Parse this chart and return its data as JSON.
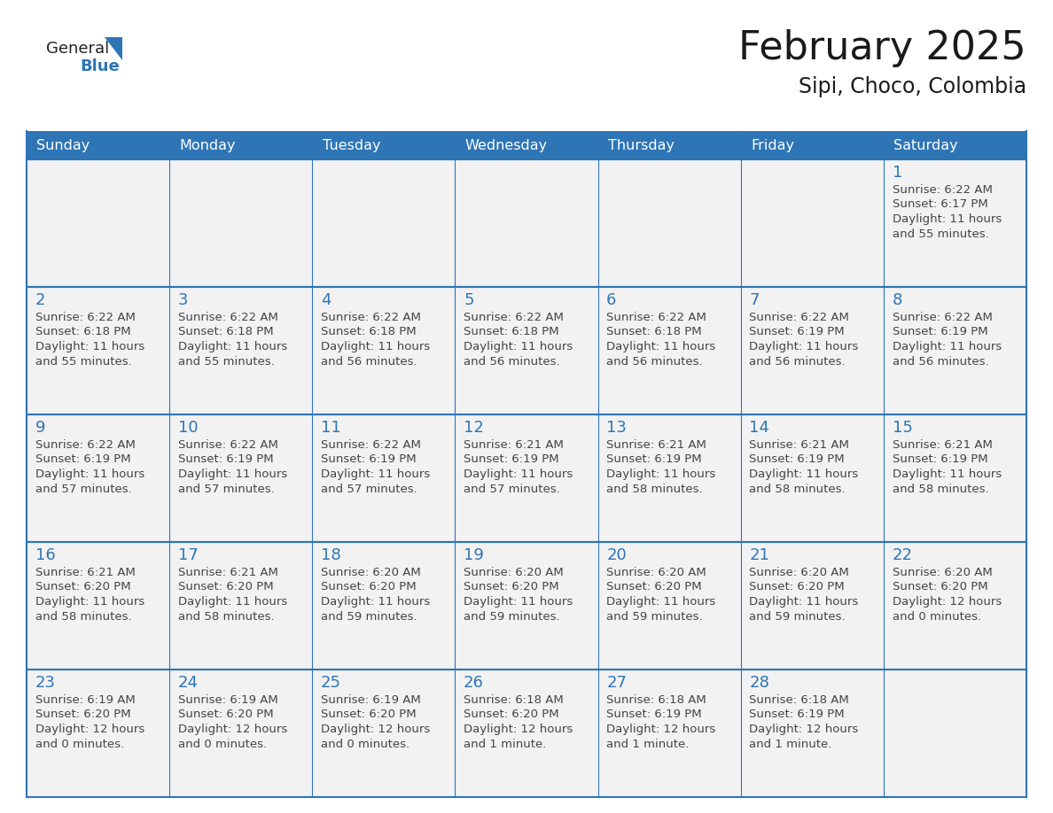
{
  "title": "February 2025",
  "subtitle": "Sipi, Choco, Colombia",
  "days_of_week": [
    "Sunday",
    "Monday",
    "Tuesday",
    "Wednesday",
    "Thursday",
    "Friday",
    "Saturday"
  ],
  "header_bg": "#2E75B6",
  "header_text_color": "#FFFFFF",
  "cell_bg": "#f2f2f2",
  "border_color": "#2E75B6",
  "day_number_color": "#2E75B6",
  "cell_text_color": "#444444",
  "title_color": "#1a1a1a",
  "subtitle_color": "#1a1a1a",
  "logo_general_color": "#222222",
  "logo_blue_color": "#2E75B6",
  "calendar_data": [
    [
      null,
      null,
      null,
      null,
      null,
      null,
      {
        "day": 1,
        "sunrise": "6:22 AM",
        "sunset": "6:17 PM",
        "daylight": "11 hours",
        "daylight2": "and 55 minutes."
      }
    ],
    [
      {
        "day": 2,
        "sunrise": "6:22 AM",
        "sunset": "6:18 PM",
        "daylight": "11 hours",
        "daylight2": "and 55 minutes."
      },
      {
        "day": 3,
        "sunrise": "6:22 AM",
        "sunset": "6:18 PM",
        "daylight": "11 hours",
        "daylight2": "and 55 minutes."
      },
      {
        "day": 4,
        "sunrise": "6:22 AM",
        "sunset": "6:18 PM",
        "daylight": "11 hours",
        "daylight2": "and 56 minutes."
      },
      {
        "day": 5,
        "sunrise": "6:22 AM",
        "sunset": "6:18 PM",
        "daylight": "11 hours",
        "daylight2": "and 56 minutes."
      },
      {
        "day": 6,
        "sunrise": "6:22 AM",
        "sunset": "6:18 PM",
        "daylight": "11 hours",
        "daylight2": "and 56 minutes."
      },
      {
        "day": 7,
        "sunrise": "6:22 AM",
        "sunset": "6:19 PM",
        "daylight": "11 hours",
        "daylight2": "and 56 minutes."
      },
      {
        "day": 8,
        "sunrise": "6:22 AM",
        "sunset": "6:19 PM",
        "daylight": "11 hours",
        "daylight2": "and 56 minutes."
      }
    ],
    [
      {
        "day": 9,
        "sunrise": "6:22 AM",
        "sunset": "6:19 PM",
        "daylight": "11 hours",
        "daylight2": "and 57 minutes."
      },
      {
        "day": 10,
        "sunrise": "6:22 AM",
        "sunset": "6:19 PM",
        "daylight": "11 hours",
        "daylight2": "and 57 minutes."
      },
      {
        "day": 11,
        "sunrise": "6:22 AM",
        "sunset": "6:19 PM",
        "daylight": "11 hours",
        "daylight2": "and 57 minutes."
      },
      {
        "day": 12,
        "sunrise": "6:21 AM",
        "sunset": "6:19 PM",
        "daylight": "11 hours",
        "daylight2": "and 57 minutes."
      },
      {
        "day": 13,
        "sunrise": "6:21 AM",
        "sunset": "6:19 PM",
        "daylight": "11 hours",
        "daylight2": "and 58 minutes."
      },
      {
        "day": 14,
        "sunrise": "6:21 AM",
        "sunset": "6:19 PM",
        "daylight": "11 hours",
        "daylight2": "and 58 minutes."
      },
      {
        "day": 15,
        "sunrise": "6:21 AM",
        "sunset": "6:19 PM",
        "daylight": "11 hours",
        "daylight2": "and 58 minutes."
      }
    ],
    [
      {
        "day": 16,
        "sunrise": "6:21 AM",
        "sunset": "6:20 PM",
        "daylight": "11 hours",
        "daylight2": "and 58 minutes."
      },
      {
        "day": 17,
        "sunrise": "6:21 AM",
        "sunset": "6:20 PM",
        "daylight": "11 hours",
        "daylight2": "and 58 minutes."
      },
      {
        "day": 18,
        "sunrise": "6:20 AM",
        "sunset": "6:20 PM",
        "daylight": "11 hours",
        "daylight2": "and 59 minutes."
      },
      {
        "day": 19,
        "sunrise": "6:20 AM",
        "sunset": "6:20 PM",
        "daylight": "11 hours",
        "daylight2": "and 59 minutes."
      },
      {
        "day": 20,
        "sunrise": "6:20 AM",
        "sunset": "6:20 PM",
        "daylight": "11 hours",
        "daylight2": "and 59 minutes."
      },
      {
        "day": 21,
        "sunrise": "6:20 AM",
        "sunset": "6:20 PM",
        "daylight": "11 hours",
        "daylight2": "and 59 minutes."
      },
      {
        "day": 22,
        "sunrise": "6:20 AM",
        "sunset": "6:20 PM",
        "daylight": "12 hours",
        "daylight2": "and 0 minutes."
      }
    ],
    [
      {
        "day": 23,
        "sunrise": "6:19 AM",
        "sunset": "6:20 PM",
        "daylight": "12 hours",
        "daylight2": "and 0 minutes."
      },
      {
        "day": 24,
        "sunrise": "6:19 AM",
        "sunset": "6:20 PM",
        "daylight": "12 hours",
        "daylight2": "and 0 minutes."
      },
      {
        "day": 25,
        "sunrise": "6:19 AM",
        "sunset": "6:20 PM",
        "daylight": "12 hours",
        "daylight2": "and 0 minutes."
      },
      {
        "day": 26,
        "sunrise": "6:18 AM",
        "sunset": "6:20 PM",
        "daylight": "12 hours",
        "daylight2": "and 1 minute."
      },
      {
        "day": 27,
        "sunrise": "6:18 AM",
        "sunset": "6:19 PM",
        "daylight": "12 hours",
        "daylight2": "and 1 minute."
      },
      {
        "day": 28,
        "sunrise": "6:18 AM",
        "sunset": "6:19 PM",
        "daylight": "12 hours",
        "daylight2": "and 1 minute."
      },
      null
    ]
  ]
}
